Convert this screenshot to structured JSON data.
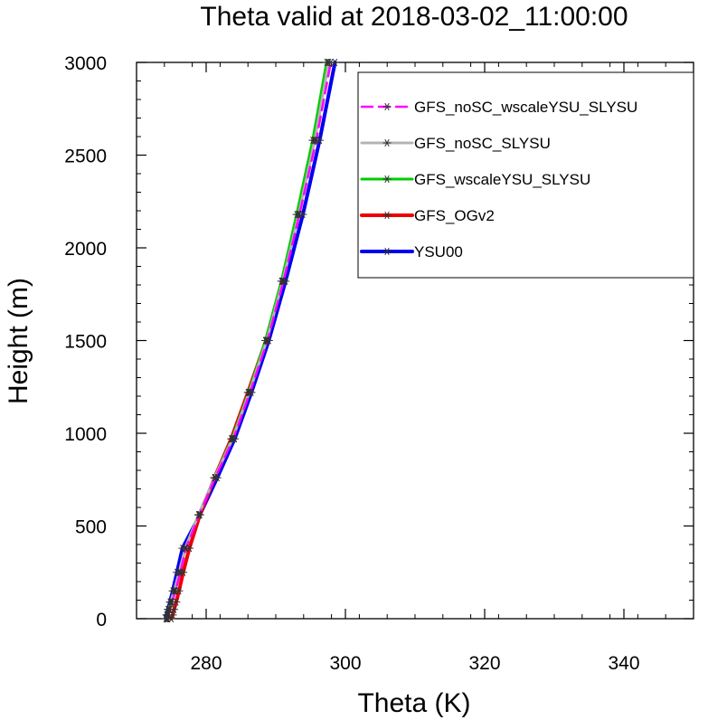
{
  "chart_data": {
    "type": "line",
    "title": "Theta valid at 2018-03-02_11:00:00",
    "xlabel": "Theta (K)",
    "ylabel": "Height (m)",
    "xlim": [
      270,
      350
    ],
    "ylim": [
      0,
      3000
    ],
    "xticks": [
      280,
      300,
      320,
      340
    ],
    "yticks": [
      0,
      500,
      1000,
      1500,
      2000,
      2500,
      3000
    ],
    "x_minor_step": 4,
    "y_minor_step": 100,
    "grid": false,
    "legend_position": "top-right",
    "series": [
      {
        "name": "GFS_noSC_wscaleYSU_SLYSU",
        "color": "#ff00ff",
        "dash": "dashed",
        "width": 2.5,
        "x": [
          274.5,
          274.6,
          274.8,
          275.1,
          275.6,
          276.3,
          277.1,
          279.0,
          281.3,
          283.9,
          286.3,
          288.8,
          291.1,
          293.4,
          295.8,
          297.9
        ],
        "y": [
          0,
          20,
          50,
          90,
          150,
          250,
          380,
          560,
          760,
          970,
          1220,
          1500,
          1820,
          2180,
          2580,
          3000
        ]
      },
      {
        "name": "GFS_noSC_SLYSU",
        "color": "#b4b4b4",
        "dash": "solid",
        "width": 3,
        "x": [
          274.3,
          274.4,
          274.6,
          274.9,
          275.4,
          276.1,
          277.0,
          278.9,
          281.2,
          283.8,
          286.2,
          288.7,
          291.0,
          293.3,
          295.6,
          297.6
        ],
        "y": [
          0,
          20,
          50,
          90,
          150,
          250,
          380,
          560,
          760,
          970,
          1220,
          1500,
          1820,
          2180,
          2580,
          3000
        ]
      },
      {
        "name": "GFS_wscaleYSU_SLYSU",
        "color": "#00cc00",
        "dash": "solid",
        "width": 3,
        "x": [
          274.4,
          274.5,
          274.7,
          275.0,
          275.5,
          276.2,
          277.0,
          278.9,
          281.2,
          283.7,
          286.1,
          288.5,
          290.8,
          293.0,
          295.3,
          297.3
        ],
        "y": [
          0,
          20,
          50,
          90,
          150,
          250,
          380,
          560,
          760,
          970,
          1220,
          1500,
          1820,
          2180,
          2580,
          3000
        ]
      },
      {
        "name": "GFS_OGv2",
        "color": "#ee0000",
        "dash": "solid",
        "width": 4,
        "x": [
          275.0,
          275.2,
          275.4,
          275.7,
          276.1,
          276.7,
          277.6,
          279.1,
          281.2,
          283.6,
          286.0,
          288.6,
          290.9,
          293.2,
          295.5,
          297.5
        ],
        "y": [
          0,
          20,
          50,
          90,
          150,
          250,
          380,
          560,
          760,
          970,
          1220,
          1500,
          1820,
          2180,
          2580,
          3000
        ]
      },
      {
        "name": "YSU00",
        "color": "#0000ee",
        "dash": "solid",
        "width": 4,
        "x": [
          274.2,
          274.3,
          274.5,
          274.8,
          275.2,
          275.8,
          276.6,
          279.1,
          281.6,
          284.1,
          286.5,
          289.0,
          291.4,
          293.9,
          296.3,
          298.5
        ],
        "y": [
          0,
          20,
          50,
          90,
          150,
          250,
          380,
          560,
          760,
          970,
          1220,
          1500,
          1820,
          2180,
          2580,
          3000
        ]
      }
    ]
  }
}
